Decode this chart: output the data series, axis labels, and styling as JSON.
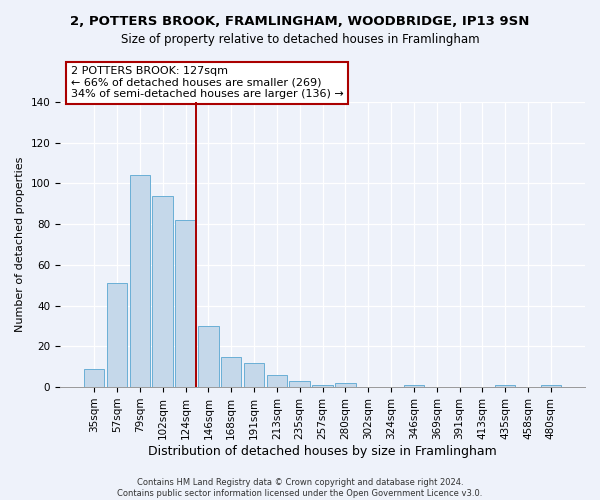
{
  "title": "2, POTTERS BROOK, FRAMLINGHAM, WOODBRIDGE, IP13 9SN",
  "subtitle": "Size of property relative to detached houses in Framlingham",
  "xlabel": "Distribution of detached houses by size in Framlingham",
  "ylabel": "Number of detached properties",
  "bar_labels": [
    "35sqm",
    "57sqm",
    "79sqm",
    "102sqm",
    "124sqm",
    "146sqm",
    "168sqm",
    "191sqm",
    "213sqm",
    "235sqm",
    "257sqm",
    "280sqm",
    "302sqm",
    "324sqm",
    "346sqm",
    "369sqm",
    "391sqm",
    "413sqm",
    "435sqm",
    "458sqm",
    "480sqm"
  ],
  "bar_values": [
    9,
    51,
    104,
    94,
    82,
    30,
    15,
    12,
    6,
    3,
    1,
    2,
    0,
    0,
    1,
    0,
    0,
    0,
    1,
    0,
    1
  ],
  "bar_color": "#c5d8ea",
  "bar_edge_color": "#6aafd6",
  "vline_x_index": 4,
  "vline_color": "#aa0000",
  "annotation_text": "2 POTTERS BROOK: 127sqm\n← 66% of detached houses are smaller (269)\n34% of semi-detached houses are larger (136) →",
  "annotation_box_facecolor": "#ffffff",
  "annotation_box_edgecolor": "#aa0000",
  "ylim": [
    0,
    140
  ],
  "yticks": [
    0,
    20,
    40,
    60,
    80,
    100,
    120,
    140
  ],
  "footer_line1": "Contains HM Land Registry data © Crown copyright and database right 2024.",
  "footer_line2": "Contains public sector information licensed under the Open Government Licence v3.0.",
  "bg_color": "#eef2fa",
  "plot_bg_color": "#eef2fa",
  "title_fontsize": 9.5,
  "subtitle_fontsize": 8.5,
  "xlabel_fontsize": 9,
  "ylabel_fontsize": 8
}
